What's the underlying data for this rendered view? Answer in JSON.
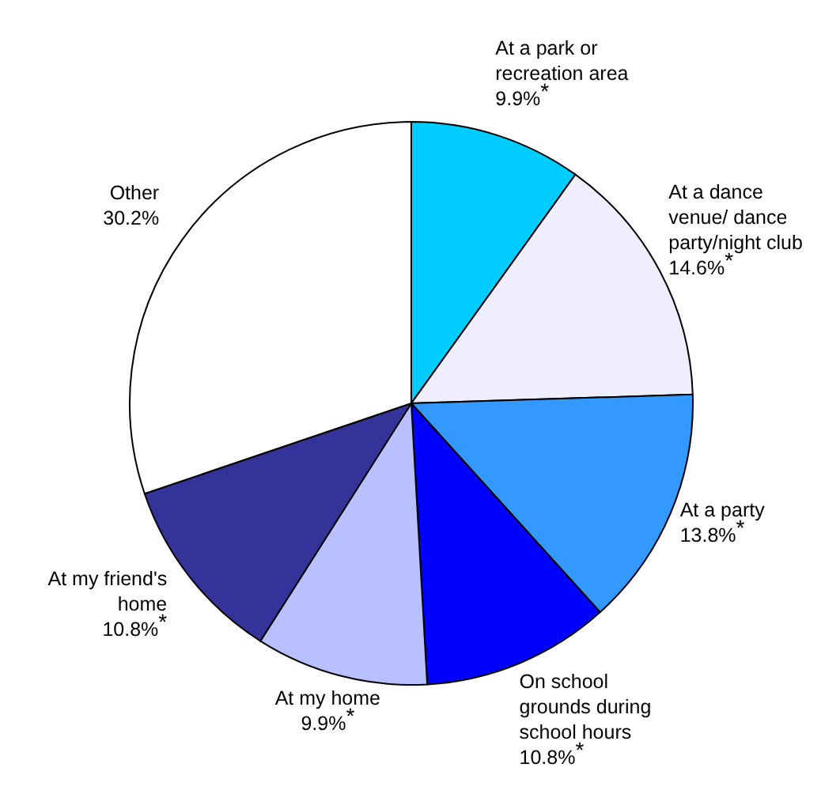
{
  "chart_data": {
    "type": "pie",
    "categories": [
      "At a park or recreation area",
      "At a dance venue/ dance party/night club",
      "At a party",
      "On school grounds during school hours",
      "At my home",
      "At my friend's home",
      "Other"
    ],
    "values": [
      9.9,
      14.6,
      13.8,
      10.8,
      9.9,
      10.8,
      30.2
    ],
    "value_labels": [
      "9.9%$^{*}$",
      "14.6%$^{*}$",
      "13.8%$^{*}$",
      "10.8%$^{*}$",
      "9.9%$^{*}$",
      "10.8%$^{*}$",
      "30.2%"
    ],
    "colors": [
      "#00ccff",
      "#eeeeff",
      "#3399ff",
      "#0000ff",
      "#b8c0ff",
      "#333399",
      "#ffffff"
    ]
  }
}
